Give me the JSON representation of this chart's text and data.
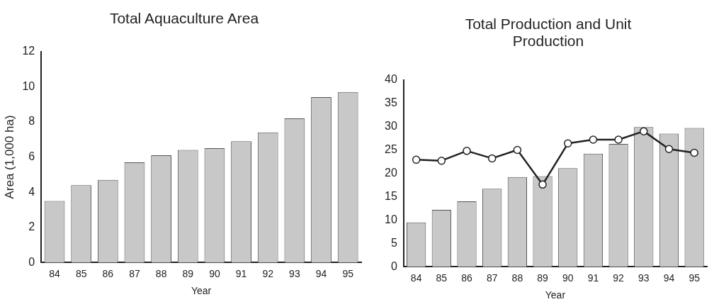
{
  "chart_data": [
    {
      "type": "bar",
      "title": "Total Aquaculture Area",
      "xlabel": "Year",
      "ylabel": "Area (1,000 ha)",
      "categories": [
        "84",
        "85",
        "86",
        "87",
        "88",
        "89",
        "90",
        "91",
        "92",
        "93",
        "94",
        "95"
      ],
      "values": [
        3.5,
        4.4,
        4.7,
        5.7,
        6.1,
        6.4,
        6.5,
        6.9,
        7.4,
        8.2,
        9.4,
        9.7
      ],
      "color": "#c8c8c8",
      "ylim": [
        0,
        12
      ],
      "yticks": [
        0,
        2,
        4,
        6,
        8,
        10,
        12
      ],
      "grid": false,
      "legend": false
    },
    {
      "type": "bar",
      "title": "Total Production and Unit Production",
      "xlabel": "Year",
      "categories": [
        "84",
        "85",
        "86",
        "87",
        "88",
        "89",
        "90",
        "91",
        "92",
        "93",
        "94",
        "95"
      ],
      "ylim": [
        0,
        40
      ],
      "yticks": [
        0,
        5,
        10,
        15,
        20,
        25,
        30,
        35,
        40
      ],
      "grid": false,
      "legend": false,
      "series": [
        {
          "type": "bar",
          "color": "#c8c8c8",
          "values": [
            9.5,
            12.2,
            14.0,
            16.7,
            19.2,
            19.4,
            21.1,
            24.2,
            26.3,
            29.9,
            28.5,
            29.7
          ]
        },
        {
          "type": "line",
          "color": "#222222",
          "marker": "circle",
          "line_style": "solid",
          "values": [
            22.9,
            22.7,
            24.8,
            23.2,
            25.0,
            17.6,
            26.4,
            27.2,
            27.2,
            29.0,
            25.2,
            24.4
          ]
        }
      ]
    }
  ]
}
